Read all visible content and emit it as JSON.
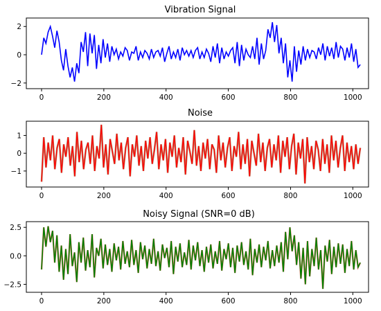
{
  "chart_data": [
    {
      "type": "line",
      "title": "Vibration Signal",
      "color": "#0000ff",
      "series": [
        {
          "values": [
            0.0,
            1.2,
            0.8,
            1.6,
            2.0,
            1.3,
            0.5,
            1.7,
            0.9,
            -0.4,
            -1.1,
            0.4,
            -0.8,
            -1.6,
            -0.9,
            -1.9,
            -0.6,
            -1.3,
            0.9,
            0.2,
            1.6,
            -0.8,
            1.5,
            0.1,
            1.4,
            -1.0,
            0.7,
            -0.6,
            1.1,
            -0.2,
            0.8,
            -0.5,
            0.6,
            0.0,
            0.4,
            -0.3,
            0.2,
            -0.1,
            0.5,
            0.3,
            -0.4,
            0.2,
            0.1,
            0.6,
            -0.4,
            0.2,
            -0.2,
            0.3,
            0.1,
            -0.3,
            0.4,
            -0.2,
            0.2,
            0.3,
            -0.1,
            0.5,
            -0.5,
            0.1,
            0.6,
            -0.3,
            0.2,
            -0.2,
            0.4,
            -0.4,
            0.5,
            0.0,
            0.3,
            -0.1,
            0.3,
            -0.2,
            0.3,
            0.5,
            -0.3,
            0.2,
            -0.2,
            0.4,
            0.1,
            -0.5,
            0.6,
            -0.2,
            0.8,
            -0.6,
            0.5,
            -0.3,
            0.2,
            -0.1,
            0.3,
            0.5,
            -0.6,
            0.9,
            -0.8,
            0.7,
            -0.4,
            0.4,
            0.0,
            -0.2,
            0.6,
            -0.3,
            1.2,
            -0.7,
            0.8,
            -0.3,
            0.3,
            1.8,
            1.2,
            2.3,
            0.9,
            2.1,
            0.1,
            1.2,
            -0.6,
            0.8,
            -1.6,
            -0.4,
            -1.9,
            0.6,
            -1.2,
            0.3,
            -0.7,
            0.6,
            -0.4,
            0.4,
            -0.2,
            0.3,
            0.2,
            -0.3,
            0.5,
            0.0,
            0.8,
            -0.4,
            0.6,
            -0.1,
            0.5,
            -0.3,
            0.9,
            -0.2,
            0.6,
            0.4,
            -0.4,
            0.5,
            -0.2,
            0.8,
            -0.5,
            0.4,
            -0.9,
            -0.7
          ],
          "y_range": [
            -2.0,
            2.4
          ]
        }
      ],
      "x_range": [
        0,
        1024
      ],
      "x_ticks": [
        "0",
        "200",
        "400",
        "600",
        "800",
        "1000"
      ],
      "y_ticks": [
        "2",
        "0",
        "−2"
      ],
      "ylim": [
        -2.4,
        2.6
      ]
    },
    {
      "type": "line",
      "title": "Noise",
      "color": "#ff0000",
      "shadow_color": "#6b3a00",
      "series": [
        {
          "values": [
            -1.6,
            0.9,
            -0.8,
            0.6,
            -0.4,
            1.0,
            -0.9,
            0.3,
            0.8,
            -1.1,
            0.5,
            -0.2,
            0.9,
            -0.7,
            0.4,
            -1.3,
            1.2,
            -0.5,
            0.7,
            -0.9,
            0.2,
            0.6,
            -0.6,
            1.0,
            -1.0,
            0.4,
            -0.3,
            1.6,
            -0.8,
            0.5,
            -1.2,
            0.8,
            0.1,
            -0.6,
            1.1,
            -0.4,
            0.6,
            -0.9,
            0.3,
            0.9,
            -1.3,
            0.5,
            -0.2,
            1.0,
            -0.7,
            0.4,
            -1.0,
            0.7,
            -0.3,
            0.9,
            -0.6,
            0.2,
            1.2,
            -0.9,
            0.5,
            -0.4,
            0.8,
            -1.1,
            0.6,
            -0.2,
            1.0,
            -0.8,
            0.3,
            -0.5,
            0.9,
            -1.2,
            0.7,
            0.1,
            -0.6,
            1.3,
            -0.7,
            0.4,
            -1.0,
            0.6,
            -0.3,
            0.8,
            -0.9,
            0.5,
            0.2,
            -1.1,
            1.0,
            -0.4,
            0.6,
            -0.8,
            0.3,
            0.9,
            -1.0,
            0.4,
            -0.2,
            1.2,
            -0.9,
            0.5,
            -0.6,
            0.8,
            -1.3,
            0.7,
            0.0,
            -0.7,
            1.1,
            -0.5,
            0.6,
            -1.0,
            0.3,
            0.8,
            -0.8,
            0.5,
            -0.4,
            1.0,
            -1.1,
            0.7,
            -0.2,
            0.9,
            -0.9,
            0.4,
            1.1,
            -1.2,
            0.6,
            -0.3,
            0.8,
            -1.7,
            0.9,
            -0.5,
            0.4,
            -0.9,
            0.7,
            0.2,
            -1.0,
            0.8,
            -0.6,
            0.5,
            -1.1,
            1.0,
            -0.4,
            0.7,
            -0.8,
            0.3,
            1.0,
            -1.0,
            0.6,
            -0.5,
            0.4,
            -0.9,
            0.5,
            -0.6,
            0.3
          ],
          "y_range": [
            -1.8,
            1.6
          ]
        }
      ],
      "x_range": [
        0,
        1024
      ],
      "x_ticks": [
        "0",
        "200",
        "400",
        "600",
        "800",
        "1000"
      ],
      "y_ticks": [
        "1",
        "0",
        "−1"
      ],
      "ylim": [
        -1.9,
        1.8
      ]
    },
    {
      "type": "line",
      "title": "Noisy Signal (SNR=0 dB)",
      "color": "#008000",
      "shadow_color": "#ff0000",
      "series": [
        {
          "values": [
            -1.2,
            2.5,
            0.8,
            2.6,
            1.2,
            2.2,
            -0.6,
            1.8,
            -1.4,
            0.9,
            -2.1,
            0.6,
            -1.6,
            1.9,
            -0.9,
            0.3,
            -2.3,
            1.2,
            -0.6,
            1.6,
            -1.3,
            0.5,
            -1.0,
            1.9,
            -1.9,
            0.7,
            0.0,
            1.5,
            -1.1,
            1.0,
            -0.8,
            0.6,
            -1.4,
            1.1,
            -0.4,
            0.8,
            -1.2,
            1.3,
            -0.7,
            0.4,
            -1.0,
            1.4,
            -0.8,
            0.5,
            -1.5,
            1.2,
            -0.3,
            0.9,
            -1.1,
            0.6,
            -0.7,
            1.5,
            -0.9,
            0.4,
            -1.3,
            1.0,
            -0.2,
            0.7,
            -1.0,
            1.3,
            -1.6,
            0.8,
            -0.5,
            1.1,
            -1.0,
            0.3,
            -0.8,
            1.4,
            -1.2,
            0.9,
            -0.4,
            1.2,
            -0.9,
            0.5,
            -1.4,
            0.8,
            -0.6,
            1.0,
            -1.1,
            0.4,
            -0.7,
            1.3,
            -1.3,
            0.6,
            -0.3,
            1.1,
            -1.0,
            0.7,
            -1.5,
            0.9,
            -0.5,
            1.2,
            -0.8,
            0.4,
            -1.2,
            1.5,
            -1.7,
            0.6,
            -0.6,
            1.0,
            -1.0,
            0.8,
            -0.4,
            1.3,
            -1.1,
            0.5,
            -0.9,
            0.9,
            -0.6,
            1.2,
            -1.4,
            2.1,
            -0.3,
            2.5,
            0.4,
            1.8,
            -0.8,
            1.2,
            -2.0,
            0.7,
            -2.5,
            1.3,
            -1.8,
            0.6,
            -0.9,
            1.6,
            -1.2,
            0.5,
            -2.9,
            0.9,
            -0.5,
            1.4,
            -1.6,
            0.8,
            -1.0,
            1.1,
            -0.7,
            1.0,
            -1.5,
            0.6,
            -0.9,
            1.3,
            -1.2,
            0.5,
            -1.0,
            -0.6
          ],
          "y_range": [
            -3.0,
            2.7
          ]
        }
      ],
      "x_range": [
        0,
        1024
      ],
      "x_ticks": [
        "0",
        "200",
        "400",
        "600",
        "800",
        "1000"
      ],
      "y_ticks": [
        "2.5",
        "0.0",
        "−2.5"
      ],
      "ylim": [
        -3.2,
        3.0
      ]
    }
  ]
}
